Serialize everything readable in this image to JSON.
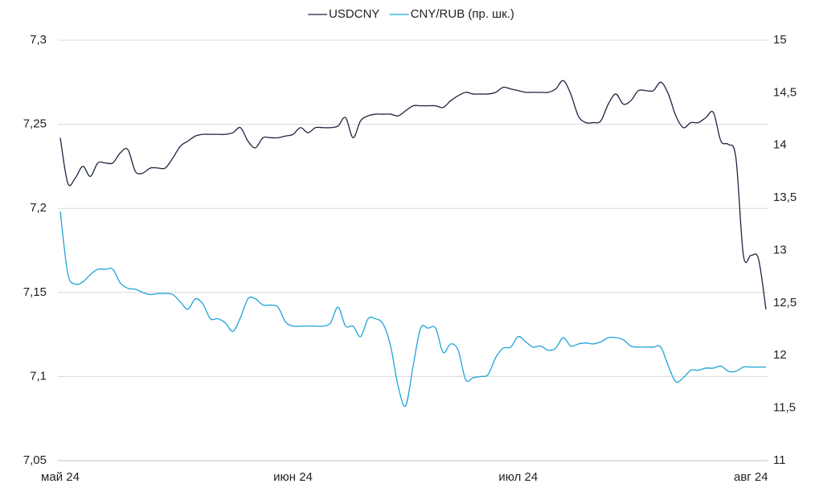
{
  "chart_data": {
    "type": "line",
    "legend": "top",
    "grid": true,
    "categories": [
      "май 24",
      null,
      null,
      null,
      null,
      null,
      null,
      null,
      null,
      null,
      null,
      null,
      null,
      null,
      null,
      null,
      null,
      null,
      null,
      null,
      null,
      null,
      null,
      null,
      null,
      null,
      null,
      null,
      null,
      null,
      null,
      "июн 24",
      null,
      null,
      null,
      null,
      null,
      null,
      null,
      null,
      null,
      null,
      null,
      null,
      null,
      null,
      null,
      null,
      null,
      null,
      null,
      null,
      null,
      null,
      null,
      null,
      null,
      null,
      null,
      null,
      null,
      "июл 24",
      null,
      null,
      null,
      null,
      null,
      null,
      null,
      null,
      null,
      null,
      null,
      null,
      null,
      null,
      null,
      null,
      null,
      null,
      null,
      null,
      null,
      null,
      null,
      null,
      null,
      null,
      null,
      null,
      null,
      null,
      "авг 24",
      null,
      null
    ],
    "ylim": [
      7.05,
      7.3
    ],
    "yticks": [
      {
        "value": 7.05,
        "label": "7,05"
      },
      {
        "value": 7.1,
        "label": "7,1"
      },
      {
        "value": 7.15,
        "label": "7,15"
      },
      {
        "value": 7.2,
        "label": "7,2"
      },
      {
        "value": 7.25,
        "label": "7,25"
      },
      {
        "value": 7.3,
        "label": "7,3"
      }
    ],
    "y2lim": [
      11,
      15
    ],
    "y2ticks": [
      11,
      {
        "value": 11.5,
        "label": "11,5"
      },
      12,
      {
        "value": 12.5,
        "label": "12,5"
      },
      13,
      {
        "value": 13.5,
        "label": "13,5"
      },
      14,
      {
        "value": 14.5,
        "label": "14,5"
      },
      15
    ],
    "series": [
      {
        "name": "USDCNY",
        "color": "#1c2541",
        "values": [
          7.242,
          7.215,
          7.218,
          7.225,
          7.219,
          7.227,
          7.227,
          7.227,
          7.233,
          7.235,
          7.222,
          7.221,
          7.224,
          7.224,
          7.224,
          7.23,
          7.237,
          7.24,
          7.243,
          7.244,
          7.244,
          7.244,
          7.244,
          7.245,
          7.248,
          7.24,
          7.236,
          7.242,
          7.242,
          7.242,
          7.243,
          7.244,
          7.248,
          7.245,
          7.248,
          7.248,
          7.248,
          7.249,
          7.254,
          7.242,
          7.252,
          7.255,
          7.256,
          7.256,
          7.256,
          7.255,
          7.258,
          7.261,
          7.261,
          7.261,
          7.261,
          7.26,
          7.264,
          7.267,
          7.269,
          7.268,
          7.268,
          7.268,
          7.269,
          7.272,
          7.271,
          7.27,
          7.269,
          7.269,
          7.269,
          7.269,
          7.271,
          7.276,
          7.268,
          7.255,
          7.251,
          7.251,
          7.252,
          7.262,
          7.268,
          7.262,
          7.264,
          7.27,
          7.27,
          7.27,
          7.275,
          7.268,
          7.255,
          7.248,
          7.251,
          7.251,
          7.254,
          7.257,
          7.24,
          7.238,
          7.23,
          7.172,
          7.172,
          7.17,
          7.14
        ]
      },
      {
        "name": "CNY/RUB (пр. шк.)",
        "color": "#1fa3d8",
        "axis": "y2",
        "values": [
          13.37,
          12.78,
          12.68,
          12.7,
          12.77,
          12.82,
          12.82,
          12.82,
          12.69,
          12.64,
          12.63,
          12.6,
          12.58,
          12.59,
          12.59,
          12.58,
          12.51,
          12.44,
          12.54,
          12.49,
          12.35,
          12.35,
          12.31,
          12.23,
          12.36,
          12.54,
          12.54,
          12.48,
          12.48,
          12.46,
          12.32,
          12.28,
          12.28,
          12.28,
          12.28,
          12.28,
          12.31,
          12.46,
          12.28,
          12.28,
          12.18,
          12.35,
          12.35,
          12.3,
          12.09,
          11.71,
          11.52,
          11.9,
          12.26,
          12.26,
          12.26,
          12.03,
          12.11,
          12.05,
          11.77,
          11.79,
          11.8,
          11.82,
          11.98,
          12.07,
          12.08,
          12.18,
          12.13,
          12.08,
          12.09,
          12.05,
          12.07,
          12.17,
          12.09,
          12.11,
          12.12,
          12.11,
          12.13,
          12.17,
          12.17,
          12.15,
          12.09,
          12.08,
          12.08,
          12.08,
          12.08,
          11.9,
          11.75,
          11.79,
          11.86,
          11.86,
          11.88,
          11.88,
          11.9,
          11.85,
          11.85,
          11.89,
          11.89,
          11.89,
          11.89
        ]
      }
    ]
  }
}
